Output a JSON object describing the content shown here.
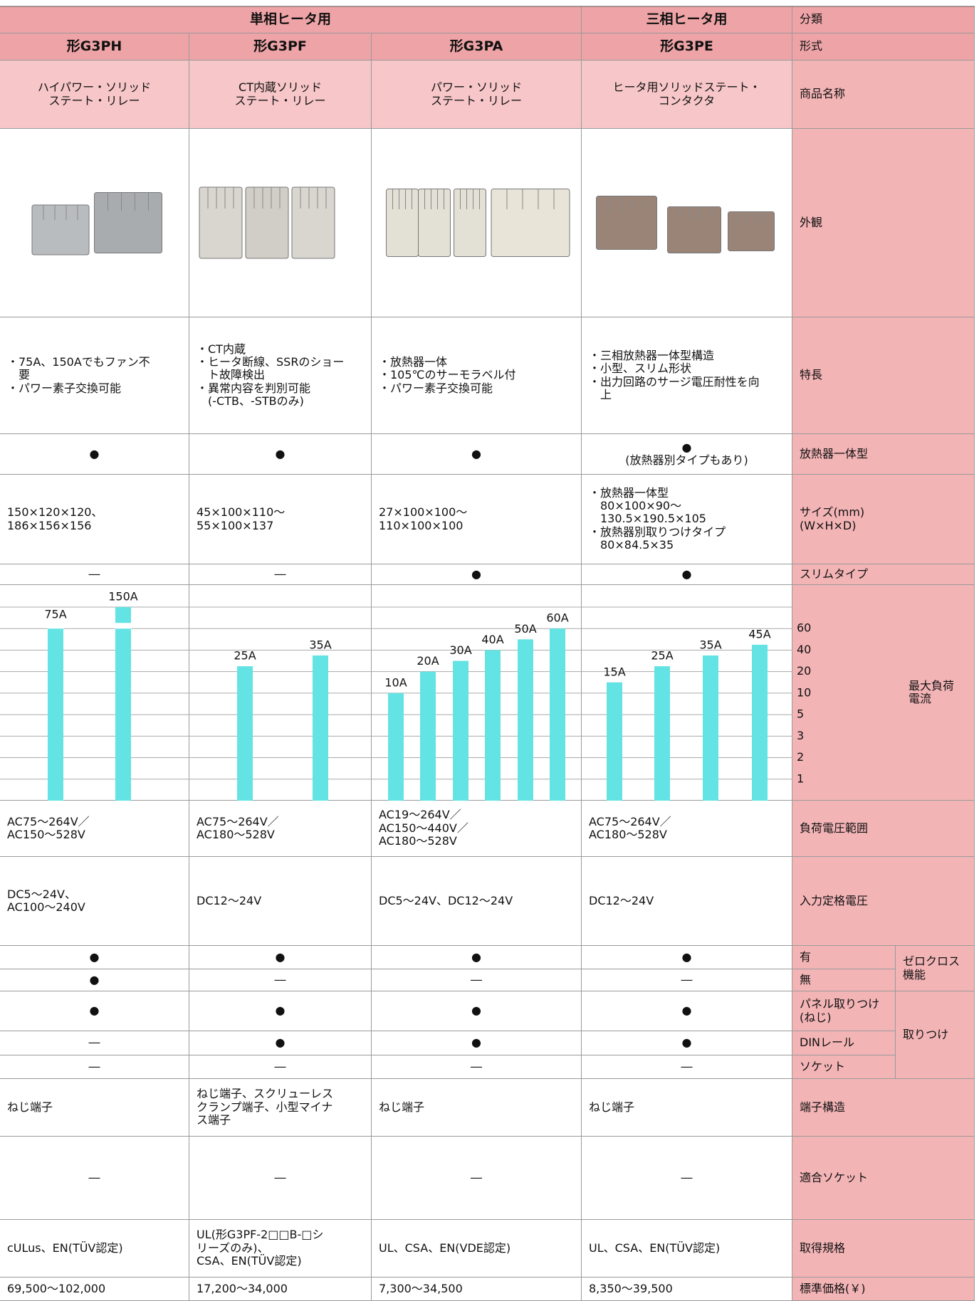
{
  "table": {
    "group_headers": [
      "単相ヒータ用",
      "三相ヒータ用"
    ],
    "group_label": "分類",
    "models": [
      "形G3PH",
      "形G3PF",
      "形G3PA",
      "形G3PE"
    ],
    "model_label": "形式",
    "rows": [
      {
        "label": "商品名称",
        "cells": [
          "ハイパワー・ソリッド\nステート・リレー",
          "CT内蔵ソリッド\nステート・リレー",
          "パワー・ソリッド\nステート・リレー",
          "ヒータ用ソリッドステート・\nコンタクタ"
        ]
      },
      {
        "label": "外観"
      },
      {
        "label": "特長",
        "cells": [
          "・75A、150Aでもファン不\n　要\n・パワー素子交換可能",
          "・CT内蔵\n・ヒータ断線、SSRのショー\n　ト故障検出\n・異常内容を判別可能\n　(-CTB、-STBのみ)",
          "・放熱器一体\n・105℃のサーモラベル付\n・パワー素子交換可能",
          "・三相放熱器一体型構造\n・小型、スリム形状\n・出力回路のサージ電圧耐性を向\n　上"
        ]
      },
      {
        "label": "放熱器一体型",
        "cells": [
          "●",
          "●",
          "●",
          "●\n(放熱器別タイプもあり)"
        ]
      },
      {
        "label": "サイズ(mm)\n(W×H×D)",
        "cells": [
          "150×120×120、\n186×156×156",
          "45×100×110～\n55×100×137",
          "27×100×100～\n110×100×100",
          "・放熱器一体型\n　80×100×90～\n　130.5×190.5×105\n・放熱器別取りつけタイプ\n　80×84.5×35"
        ]
      },
      {
        "label": "スリムタイプ",
        "cells": [
          "―",
          "―",
          "●",
          "●"
        ]
      },
      {
        "label": "最大負荷\n電流"
      },
      {
        "label": "負荷電圧範囲",
        "cells": [
          "AC75～264V／\nAC150～528V",
          "AC75～264V／\nAC180～528V",
          "AC19～264V／\nAC150～440V／\nAC180～528V",
          "AC75～264V／\nAC180～528V"
        ]
      },
      {
        "label": "入力定格電圧",
        "cells": [
          "DC5～24V、\nAC100～240V",
          "DC12～24V",
          "DC5～24V、DC12～24V",
          "DC12～24V"
        ]
      },
      {
        "group": "ゼロクロス\n機能",
        "items": [
          {
            "label": "有",
            "cells": [
              "●",
              "●",
              "●",
              "●"
            ]
          },
          {
            "label": "無",
            "cells": [
              "●",
              "―",
              "―",
              "―"
            ]
          }
        ]
      },
      {
        "group": "取りつけ",
        "items": [
          {
            "label": "パネル取りつけ\n(ねじ)",
            "cells": [
              "●",
              "●",
              "●",
              "●"
            ]
          },
          {
            "label": "DINレール",
            "cells": [
              "―",
              "●",
              "●",
              "●"
            ]
          },
          {
            "label": "ソケット",
            "cells": [
              "―",
              "―",
              "―",
              "―"
            ]
          }
        ]
      },
      {
        "label": "端子構造",
        "cells": [
          "ねじ端子",
          "ねじ端子、スクリューレス\nクランプ端子、小型マイナ\nス端子",
          "ねじ端子",
          "ねじ端子"
        ]
      },
      {
        "label": "適合ソケット",
        "cells": [
          "―",
          "―",
          "―",
          "―"
        ]
      },
      {
        "label": "取得規格",
        "cells": [
          "cULus、EN(TÜV認定)",
          "UL(形G3PF-2□□B-□シ\nリーズのみ)、\nCSA、EN(TÜV認定)",
          "UL、CSA、EN(VDE認定)",
          "UL、CSA、EN(TÜV認定)"
        ]
      },
      {
        "label": "標準価格(￥)",
        "cells": [
          "69,500～102,000",
          "17,200～34,000",
          "7,300～34,500",
          "8,350～39,500"
        ]
      }
    ]
  },
  "chart_data": {
    "type": "bar",
    "color": "#63e3e3",
    "ylim": [
      0,
      150
    ],
    "yticks": [
      1,
      2,
      3,
      5,
      10,
      20,
      40,
      60
    ],
    "series": [
      {
        "values": [
          75,
          150
        ],
        "value_labels": [
          "75A",
          "150A"
        ]
      },
      {
        "values": [
          25,
          35
        ],
        "value_labels": [
          "25A",
          "35A"
        ]
      },
      {
        "values": [
          10,
          20,
          30,
          40,
          50,
          60
        ],
        "value_labels": [
          "10A",
          "20A",
          "30A",
          "40A",
          "50A",
          "60A"
        ]
      },
      {
        "values": [
          15,
          25,
          35,
          45
        ],
        "value_labels": [
          "15A",
          "25A",
          "35A",
          "45A"
        ]
      }
    ]
  }
}
